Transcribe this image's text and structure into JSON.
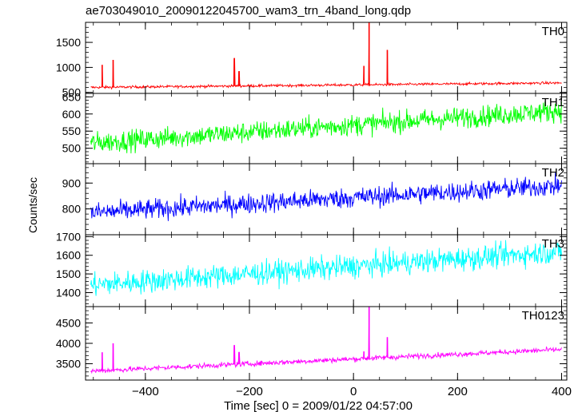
{
  "chart_data": {
    "type": "line",
    "title": "ae703049010_20090122045700_wam3_trn_4band_long.qdp",
    "xlabel": "Time [sec] 0 = 2009/01/22 04:57:00",
    "ylabel": "Counts/sec",
    "xlim": [
      -515,
      410
    ],
    "xticks": [
      -400,
      -200,
      0,
      200,
      400
    ],
    "x_tick_labels": [
      "−400",
      "−200",
      "0",
      "200",
      "400"
    ],
    "grid": false,
    "panels": [
      {
        "name": "TH0",
        "color": "#ff0000",
        "ylim": [
          480,
          1900
        ],
        "yticks": [
          500,
          1000,
          1500
        ],
        "baseline_start": 600,
        "baseline_end": 690,
        "noise": 18,
        "x_start": -505,
        "x_end": 400,
        "spikes": [
          {
            "x": -483,
            "y": 1050
          },
          {
            "x": -462,
            "y": 1150
          },
          {
            "x": -229,
            "y": 1180
          },
          {
            "x": -220,
            "y": 920
          },
          {
            "x": 20,
            "y": 1030
          },
          {
            "x": 30,
            "y": 1900
          },
          {
            "x": 65,
            "y": 1350
          }
        ]
      },
      {
        "name": "TH1",
        "color": "#00ff00",
        "ylim": [
          455,
          660
        ],
        "yticks": [
          500,
          550,
          600,
          650
        ],
        "baseline_start": 515,
        "baseline_end": 610,
        "noise": 22,
        "x_start": -505,
        "x_end": 400,
        "spikes": []
      },
      {
        "name": "TH2",
        "color": "#0000ff",
        "ylim": [
          700,
          975
        ],
        "yticks": [
          800,
          900
        ],
        "baseline_start": 785,
        "baseline_end": 890,
        "noise": 28,
        "x_start": -505,
        "x_end": 400,
        "spikes": []
      },
      {
        "name": "TH3",
        "color": "#00ffff",
        "ylim": [
          1325,
          1710
        ],
        "yticks": [
          1400,
          1500,
          1600,
          1700
        ],
        "baseline_start": 1440,
        "baseline_end": 1620,
        "noise": 45,
        "x_start": -505,
        "x_end": 400,
        "spikes": []
      },
      {
        "name": "TH0123",
        "color": "#ff00ff",
        "ylim": [
          3100,
          4900
        ],
        "yticks": [
          3500,
          4000,
          4500
        ],
        "baseline_start": 3320,
        "baseline_end": 3850,
        "noise": 45,
        "x_start": -505,
        "x_end": 400,
        "spikes": [
          {
            "x": -483,
            "y": 3780
          },
          {
            "x": -462,
            "y": 4000
          },
          {
            "x": -229,
            "y": 3950
          },
          {
            "x": -220,
            "y": 3780
          },
          {
            "x": 20,
            "y": 3800
          },
          {
            "x": 30,
            "y": 4900
          },
          {
            "x": 65,
            "y": 4150
          }
        ]
      }
    ]
  }
}
